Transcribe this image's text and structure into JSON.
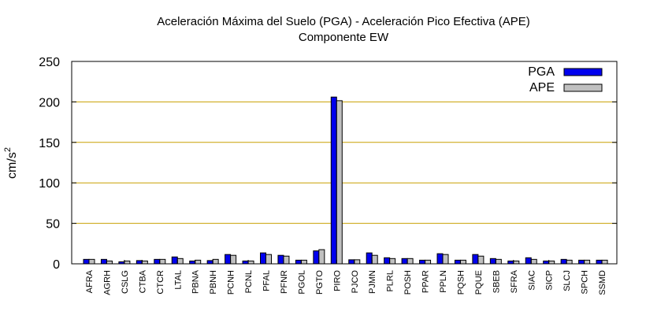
{
  "chart_data": {
    "type": "bar",
    "title": "Aceleración Máxima del Suelo (PGA) -  Aceleración Pico Efectiva (APE)",
    "subtitle": "Componente EW",
    "xlabel": "",
    "ylabel": "cm/s",
    "ylabel_superscript": "2",
    "ylim": [
      0,
      250
    ],
    "yticks": [
      0,
      50,
      100,
      150,
      200,
      250
    ],
    "grid": "horizontal",
    "legend_position": "top-right",
    "categories": [
      "AFRA",
      "AGRH",
      "CSLG",
      "CTBA",
      "CTCR",
      "LTAL",
      "PBNA",
      "PBNH",
      "PCNH",
      "PCNL",
      "PFAL",
      "PFNR",
      "PGOL",
      "PGTO",
      "PIRO",
      "PJCO",
      "PJMN",
      "PLRL",
      "POSH",
      "PPAR",
      "PPLN",
      "PQSH",
      "PQUE",
      "SBEB",
      "SFRA",
      "SIAC",
      "SICP",
      "SLCJ",
      "SPCH",
      "SSMD"
    ],
    "series": [
      {
        "name": "PGA",
        "color": "#0000ee",
        "values": [
          5.5,
          5.5,
          2.5,
          4,
          5.5,
          8.5,
          3.5,
          4,
          11.5,
          3.5,
          13.5,
          10.5,
          4.5,
          16,
          206,
          5,
          13.5,
          7.5,
          6.5,
          4.5,
          12.5,
          4.5,
          11.5,
          6.5,
          3.5,
          7.5,
          3.5,
          5.5,
          4.5,
          4.5
        ]
      },
      {
        "name": "APE",
        "color": "#c0c0c0",
        "values": [
          5.5,
          3.5,
          3.5,
          3.5,
          5.5,
          6.5,
          4.5,
          5.5,
          10.5,
          3.5,
          11.5,
          9.5,
          4.5,
          17.5,
          201.5,
          5,
          10.5,
          6.5,
          6.5,
          4.5,
          11.5,
          4.5,
          9.5,
          5.5,
          3.5,
          5.5,
          3.5,
          4.5,
          4.5,
          4.5
        ]
      }
    ],
    "colors": {
      "grid": "#c8a000",
      "axis": "#000000"
    }
  }
}
